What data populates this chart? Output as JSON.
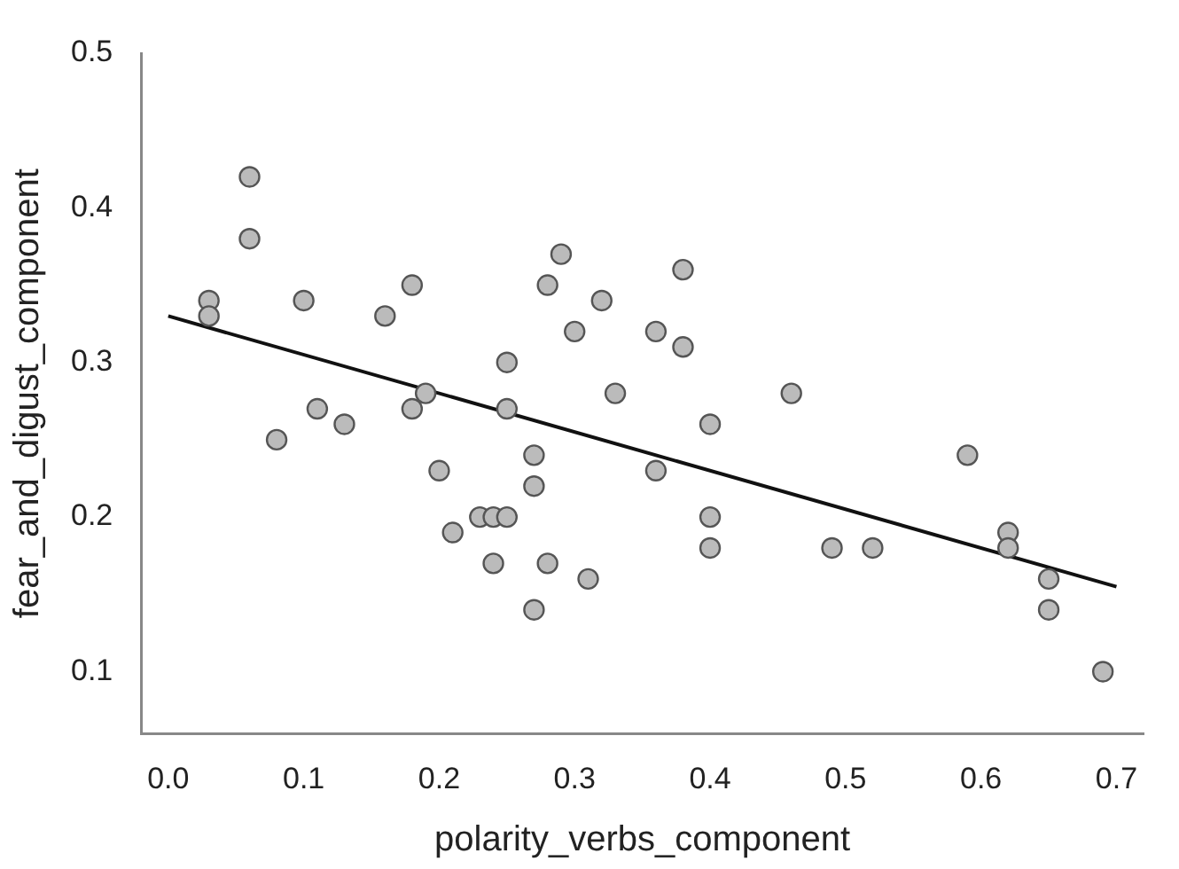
{
  "chart_data": {
    "type": "scatter",
    "xlabel": "polarity_verbs_component",
    "ylabel": "fear_and_digust_component",
    "xlim": [
      -0.02,
      0.72
    ],
    "ylim": [
      0.06,
      0.5
    ],
    "xticks": [
      {
        "value": 0,
        "label": "0.0"
      },
      0.1,
      0.2,
      0.3,
      0.4,
      0.5,
      0.6,
      0.7
    ],
    "yticks": [
      0.1,
      0.2,
      0.3,
      0.4,
      0.5
    ],
    "grid": false,
    "series": [
      {
        "color": "#bbbbbb",
        "marker": "circle",
        "x": [
          0.03,
          0.03,
          0.06,
          0.06,
          0.08,
          0.1,
          0.11,
          0.13,
          0.16,
          0.18,
          0.18,
          0.19,
          0.2,
          0.21,
          0.23,
          0.24,
          0.25,
          0.24,
          0.25,
          0.25,
          0.27,
          0.27,
          0.27,
          0.28,
          0.28,
          0.29,
          0.3,
          0.31,
          0.32,
          0.33,
          0.36,
          0.36,
          0.38,
          0.38,
          0.4,
          0.4,
          0.4,
          0.46,
          0.49,
          0.52,
          0.59,
          0.62,
          0.62,
          0.65,
          0.65,
          0.69
        ],
        "values": [
          0.34,
          0.33,
          0.42,
          0.38,
          0.25,
          0.34,
          0.27,
          0.26,
          0.33,
          0.35,
          0.27,
          0.28,
          0.23,
          0.19,
          0.2,
          0.2,
          0.2,
          0.17,
          0.3,
          0.27,
          0.24,
          0.22,
          0.14,
          0.35,
          0.17,
          0.37,
          0.32,
          0.16,
          0.34,
          0.28,
          0.32,
          0.23,
          0.36,
          0.31,
          0.26,
          0.2,
          0.18,
          0.28,
          0.18,
          0.18,
          0.24,
          0.19,
          0.18,
          0.16,
          0.14,
          0.1
        ]
      },
      {
        "type": "line",
        "color": "#111111",
        "line_style": "solid",
        "marker": "none",
        "x": [
          0,
          0.7
        ],
        "values": [
          0.33,
          0.155
        ]
      }
    ]
  }
}
